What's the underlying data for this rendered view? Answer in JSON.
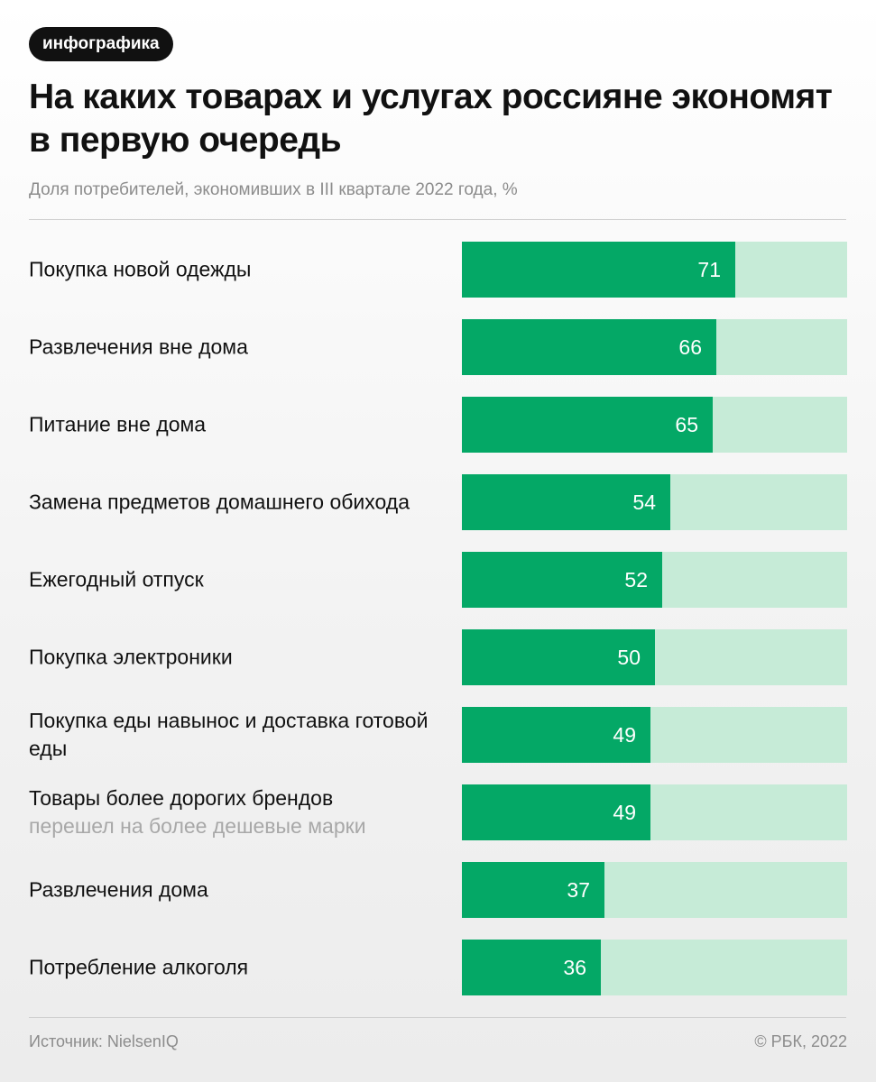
{
  "header": {
    "tag": "инфографика",
    "title": "На каких товарах и услугах россияне экономят в первую очередь",
    "subtitle": "Доля потребителей, экономивших в III квартале 2022 года, %"
  },
  "chart_data": {
    "type": "bar",
    "orientation": "horizontal",
    "title": "На каких товарах и услугах россияне экономят в первую очередь",
    "subtitle": "Доля потребителей, экономивших в III квартале 2022 года, %",
    "unit": "%",
    "xlim": [
      0,
      100
    ],
    "categories": [
      "Покупка новой одежды",
      "Развлечения вне дома",
      "Питание вне дома",
      "Замена предметов домашнего обихода",
      "Ежегодный отпуск",
      "Покупка электроники",
      "Покупка еды навынос и доставка готовой еды",
      "Товары более дорогих брендов",
      "Развлечения дома",
      "Потребление алкоголя"
    ],
    "notes": [
      "",
      "",
      "",
      "",
      "",
      "",
      "",
      "перешел на более дешевые марки",
      "",
      ""
    ],
    "values": [
      71,
      66,
      65,
      54,
      52,
      50,
      49,
      49,
      37,
      36
    ]
  },
  "colors": {
    "bar": "#04a866",
    "track": "#c6ebd7",
    "value_text": "#ffffff"
  },
  "footer": {
    "source": "Источник: NielsenIQ",
    "copyright": "© РБК, 2022"
  }
}
